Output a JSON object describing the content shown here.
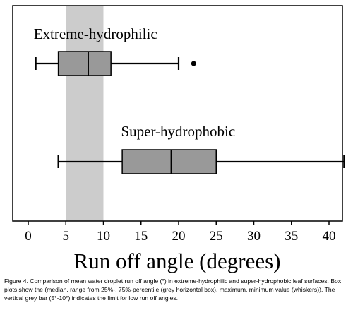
{
  "chart_data": {
    "type": "boxplot",
    "orientation": "horizontal",
    "xlabel": "Run off angle (degrees)",
    "xlim": [
      -2.5,
      42.5
    ],
    "xticks": [
      0,
      5,
      10,
      15,
      20,
      25,
      30,
      35,
      40
    ],
    "grid": false,
    "legend": "none",
    "shaded_band": {
      "x_min": 5,
      "x_max": 10,
      "color": "#cccccc"
    },
    "box_color": "#999999",
    "series": [
      {
        "name": "Extreme-hydrophilic",
        "min": 1,
        "q1": 4,
        "median": 8,
        "q3": 11,
        "max": 20,
        "outliers": [
          22
        ]
      },
      {
        "name": "Super-hydrophobic",
        "min": 4,
        "q1": 12.5,
        "median": 19,
        "q3": 25,
        "max": 42,
        "outliers": []
      }
    ]
  },
  "caption": "Figure 4. Comparison of mean water droplet run off angle (°) in extreme-hydrophilic and super-hydrophobic leaf surfaces. Box plots show the (median, range from 25%-, 75%-percentile (grey horizontal box), maximum, minimum value (whiskers)). The vertical grey bar (5°-10°) indicates the limit for low run off angles."
}
